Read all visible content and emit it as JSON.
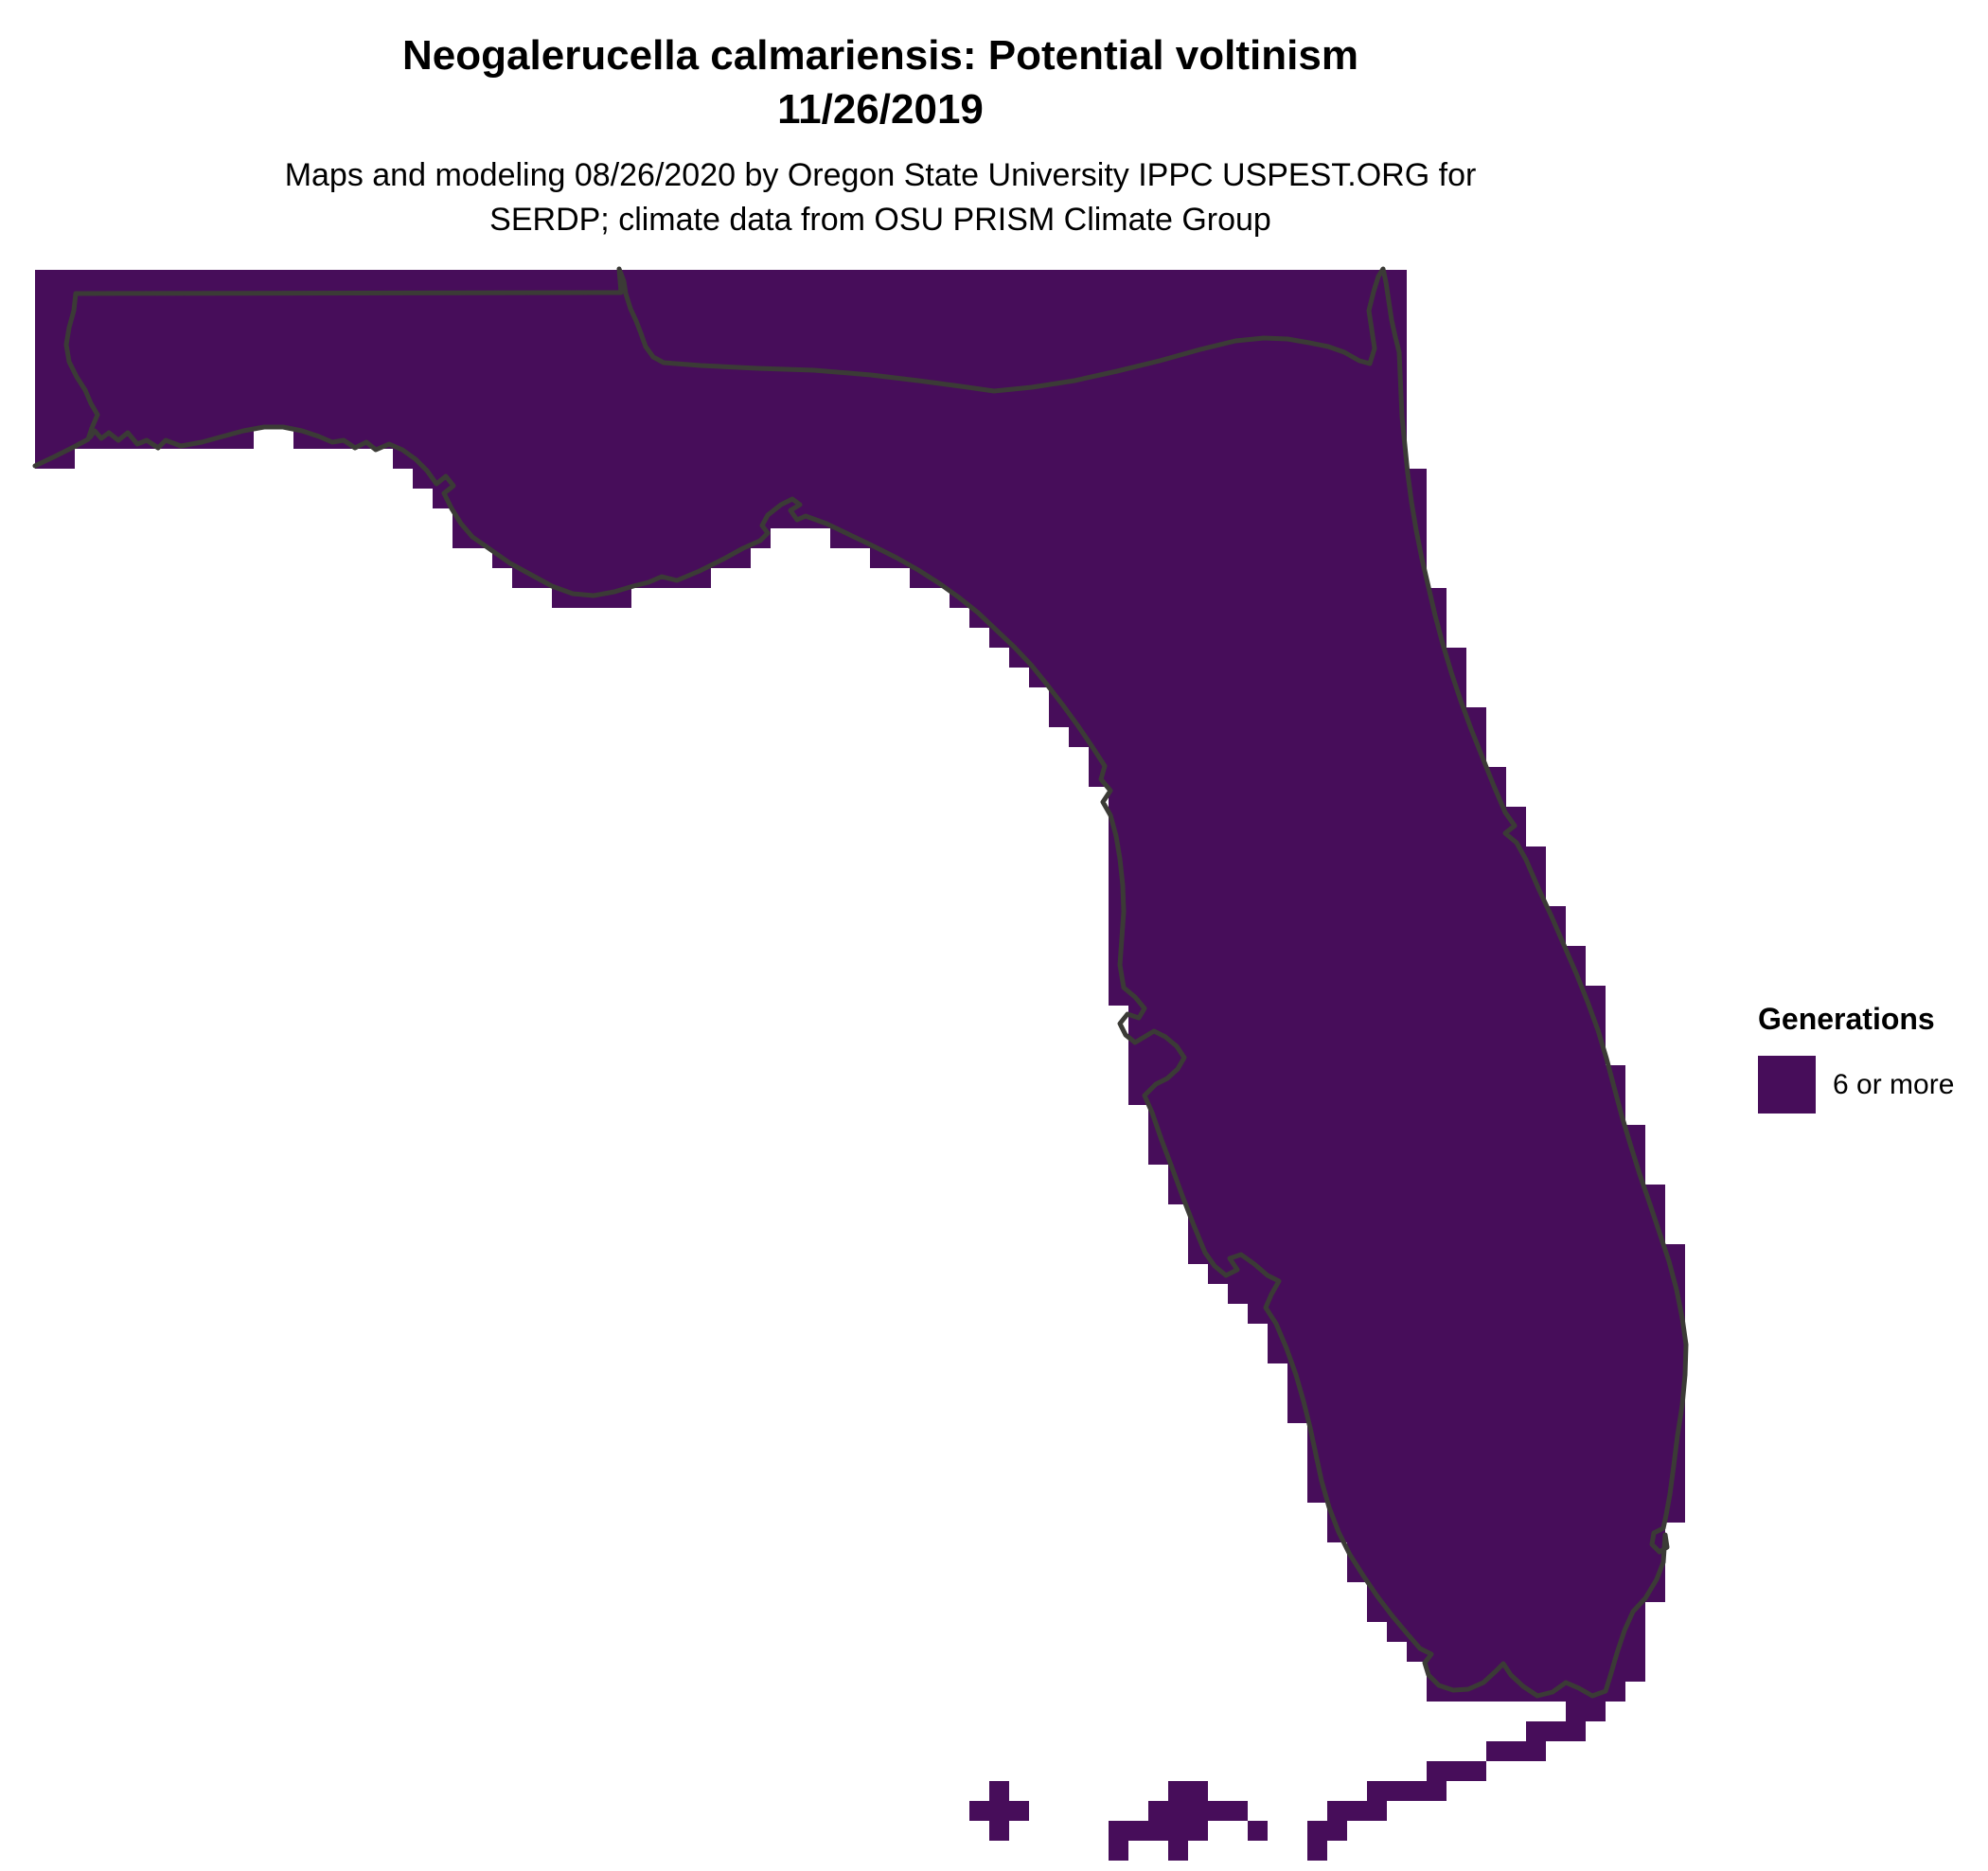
{
  "title": {
    "line1": "Neogalerucella calmariensis: Potential voltinism",
    "line2": "11/26/2019"
  },
  "subtitle": {
    "line1": "Maps and modeling 08/26/2020 by Oregon State University IPPC USPEST.ORG for",
    "line2": "SERDP; climate data from OSU PRISM Climate Group"
  },
  "legend": {
    "title": "Generations",
    "items": [
      {
        "label": "6 or more",
        "color": "#470d5a"
      }
    ]
  },
  "map": {
    "region": "Florida",
    "fill_color": "#470d5a",
    "boundary_color": "#3b3b36",
    "background_color": "#ffffff",
    "value_shown": "6 or more generations (entire state)"
  }
}
